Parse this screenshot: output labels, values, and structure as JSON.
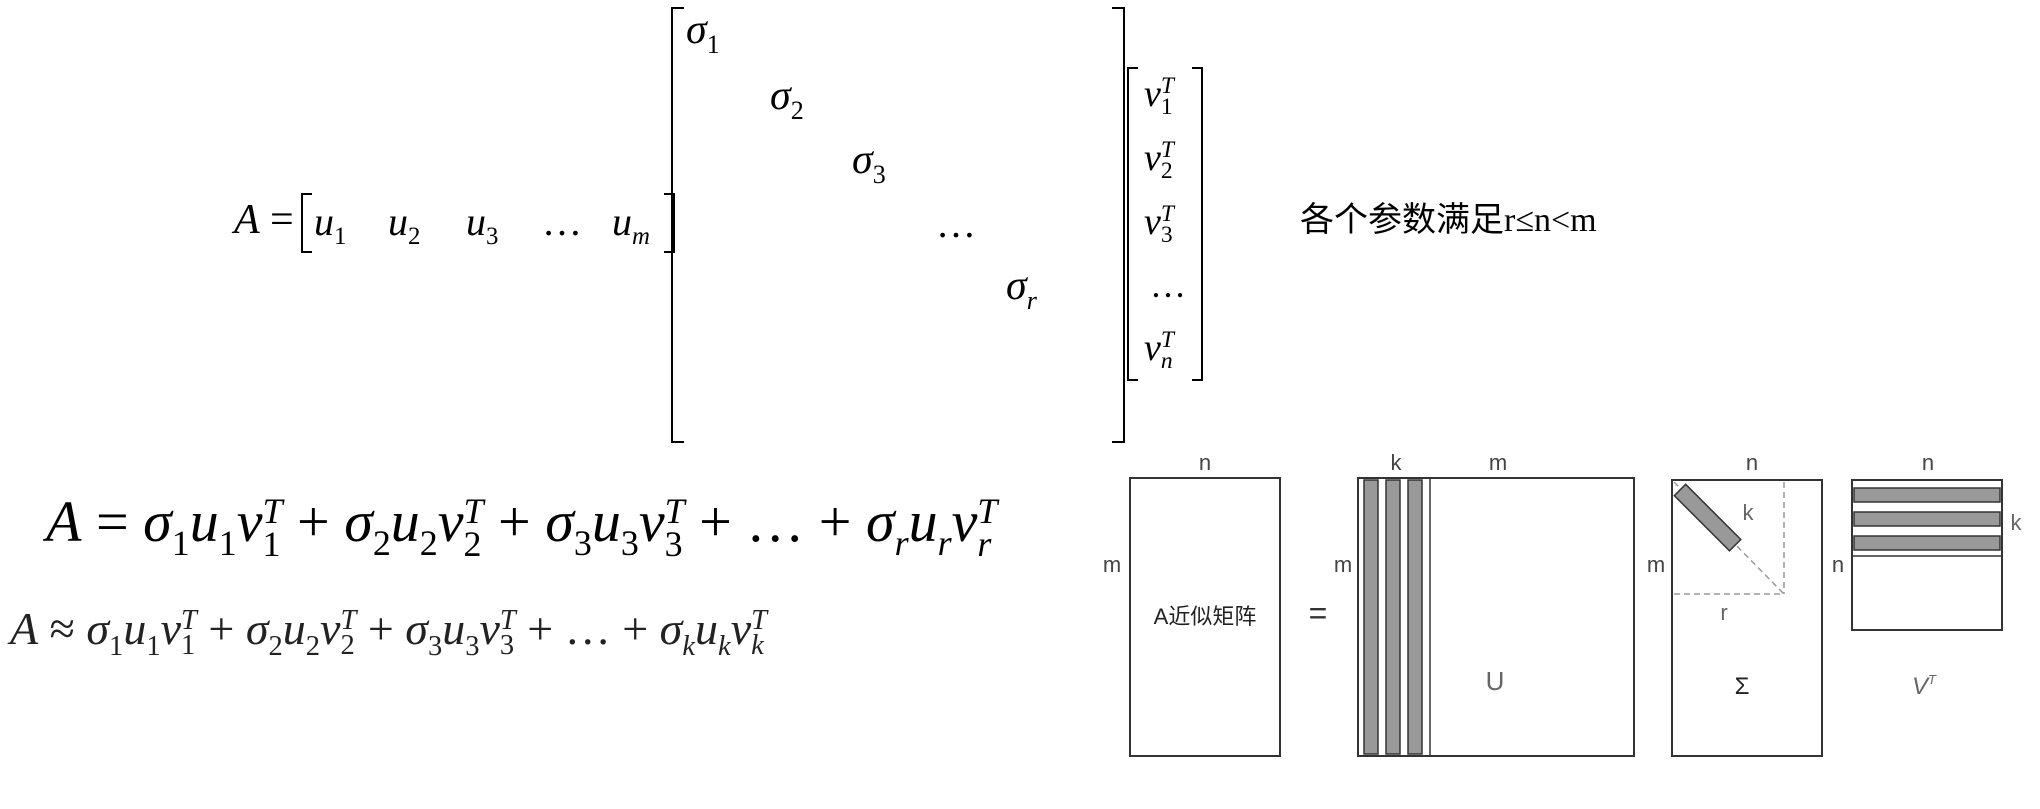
{
  "condition_note": "各个参数满足r≤n<m",
  "svd": {
    "lhs": "A",
    "eq": "=",
    "u_row": [
      {
        "base": "u",
        "sub": "1"
      },
      {
        "base": "u",
        "sub": "2"
      },
      {
        "base": "u",
        "sub": "3"
      },
      {
        "base": "…",
        "sub": ""
      },
      {
        "base": "u",
        "sub": "m"
      }
    ],
    "sigma_diag": [
      {
        "base": "σ",
        "sub": "1"
      },
      {
        "base": "σ",
        "sub": "2"
      },
      {
        "base": "σ",
        "sub": "3"
      },
      {
        "base": "…",
        "sub": ""
      },
      {
        "base": "σ",
        "sub": "r"
      }
    ],
    "v_col": [
      {
        "base": "v",
        "sub": "1",
        "sup": "T"
      },
      {
        "base": "v",
        "sub": "2",
        "sup": "T"
      },
      {
        "base": "v",
        "sub": "3",
        "sup": "T"
      },
      {
        "base": "…",
        "sub": "",
        "sup": ""
      },
      {
        "base": "v",
        "sub": "n",
        "sup": "T"
      }
    ]
  },
  "expansion": {
    "lhs": "A",
    "rel": "=",
    "terms": [
      {
        "s": "1",
        "u": "1",
        "v": "1"
      },
      {
        "s": "2",
        "u": "2",
        "v": "2"
      },
      {
        "s": "3",
        "u": "3",
        "v": "3"
      },
      {
        "dots": "…"
      },
      {
        "s": "r",
        "u": "r",
        "v": "r"
      }
    ]
  },
  "approximation": {
    "lhs": "A",
    "rel": "≈",
    "terms": [
      {
        "s": "1",
        "u": "1",
        "v": "1"
      },
      {
        "s": "2",
        "u": "2",
        "v": "2"
      },
      {
        "s": "3",
        "u": "3",
        "v": "3"
      },
      {
        "dots": "…"
      },
      {
        "s": "k",
        "u": "k",
        "v": "k"
      }
    ]
  },
  "diagram": {
    "approx_matrix": {
      "label": "A近似矩阵",
      "top": "n",
      "left": "m"
    },
    "equals": "=",
    "u_matrix": {
      "label": "U",
      "top_k": "k",
      "top_m": "m",
      "left": "m"
    },
    "sigma_matrix": {
      "label": "Σ",
      "top": "n",
      "left": "m",
      "k": "k",
      "r": "r"
    },
    "vt_matrix": {
      "label": "V",
      "label_sup": "T",
      "top": "n",
      "left": "n",
      "right": "k"
    }
  }
}
